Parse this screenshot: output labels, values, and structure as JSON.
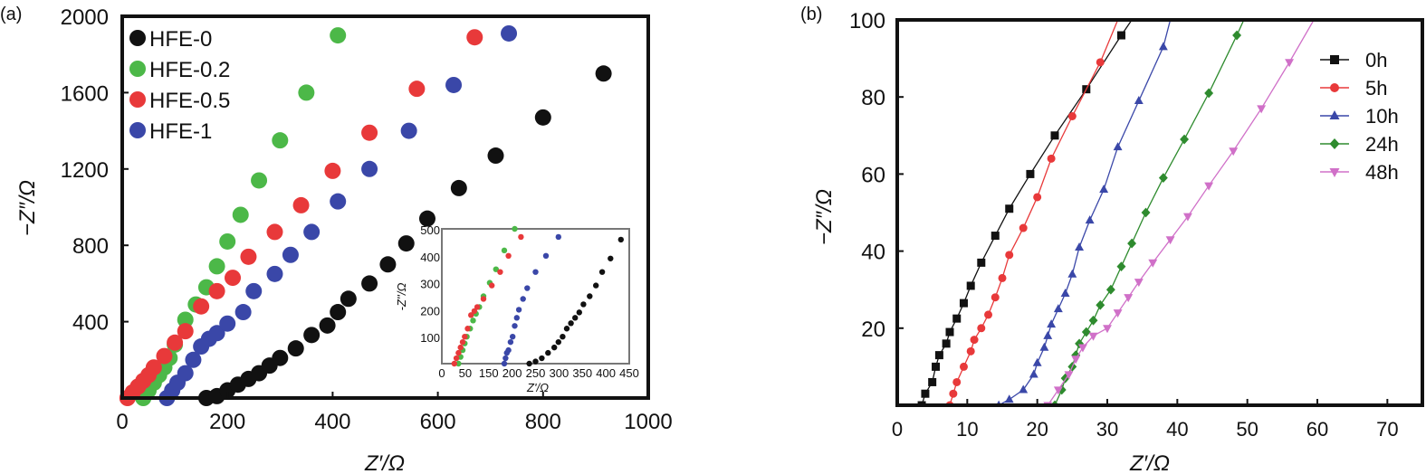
{
  "chart_data": [
    {
      "panel_label": "(a)",
      "type": "scatter",
      "xlabel": "Z′/Ω",
      "ylabel": "−Z″/Ω",
      "xlim": [
        0,
        1000
      ],
      "ylim": [
        0,
        2000
      ],
      "xticks": [
        0,
        200,
        400,
        600,
        800,
        1000
      ],
      "yticks": [
        400,
        800,
        1200,
        1600,
        2000
      ],
      "grid": false,
      "legend_position": "top-left",
      "series": [
        {
          "name": "HFE-0",
          "color": "#111111",
          "marker": "circle",
          "x": [
            160,
            180,
            200,
            220,
            240,
            260,
            280,
            300,
            330,
            360,
            390,
            410,
            430,
            470,
            505,
            540,
            580,
            640,
            710,
            800,
            915
          ],
          "y": [
            0,
            10,
            40,
            70,
            100,
            130,
            170,
            210,
            260,
            330,
            380,
            450,
            520,
            600,
            700,
            810,
            940,
            1100,
            1270,
            1470,
            1700
          ]
        },
        {
          "name": "HFE-0.2",
          "color": "#4cb848",
          "marker": "circle",
          "x": [
            40,
            50,
            60,
            70,
            80,
            90,
            100,
            120,
            140,
            160,
            180,
            200,
            225,
            260,
            300,
            350,
            410
          ],
          "y": [
            0,
            40,
            80,
            120,
            160,
            210,
            280,
            410,
            490,
            580,
            690,
            820,
            960,
            1140,
            1350,
            1600,
            1900
          ]
        },
        {
          "name": "HFE-0.5",
          "color": "#e8393a",
          "marker": "circle",
          "x": [
            10,
            20,
            30,
            40,
            50,
            60,
            80,
            100,
            120,
            150,
            180,
            210,
            240,
            290,
            340,
            400,
            470,
            560,
            670
          ],
          "y": [
            0,
            30,
            60,
            90,
            120,
            160,
            220,
            290,
            350,
            480,
            560,
            630,
            740,
            870,
            1010,
            1190,
            1390,
            1620,
            1890
          ]
        },
        {
          "name": "HFE-1",
          "color": "#3a47a8",
          "marker": "circle",
          "x": [
            85,
            95,
            105,
            120,
            135,
            150,
            165,
            180,
            200,
            230,
            250,
            290,
            320,
            360,
            410,
            470,
            545,
            630,
            735
          ],
          "y": [
            0,
            40,
            80,
            130,
            200,
            270,
            310,
            340,
            390,
            450,
            560,
            650,
            750,
            870,
            1030,
            1200,
            1400,
            1640,
            1910
          ]
        }
      ],
      "inset": {
        "type": "scatter",
        "xlabel": "Z'/Ω",
        "ylabel": "-Z''/Ω",
        "xlim": [
          0,
          450
        ],
        "ylim": [
          0,
          500
        ],
        "xtick_labels": [
          "0",
          "50",
          "150",
          "200",
          "250",
          "300",
          "350",
          "400",
          "450"
        ],
        "yticks": [
          100,
          200,
          300,
          400,
          500
        ],
        "series": [
          {
            "name": "HFE-0",
            "color": "#111111",
            "x": [
              210,
              225,
              240,
              255,
              270,
              280,
              290,
              300,
              310,
              320,
              330,
              340,
              355,
              370,
              385,
              405,
              430
            ],
            "y": [
              0,
              8,
              20,
              40,
              60,
              80,
              100,
              130,
              150,
              170,
              190,
              220,
              250,
              290,
              340,
              390,
              460
            ]
          },
          {
            "name": "HFE-0.2",
            "color": "#4cb848",
            "x": [
              40,
              45,
              50,
              55,
              60,
              68,
              75,
              82,
              90,
              100,
              115,
              130,
              150,
              175
            ],
            "y": [
              0,
              25,
              50,
              75,
              100,
              130,
              160,
              185,
              210,
              250,
              300,
              350,
              420,
              500
            ]
          },
          {
            "name": "HFE-0.5",
            "color": "#e8393a",
            "x": [
              30,
              35,
              40,
              45,
              50,
              55,
              62,
              70,
              78,
              85,
              100,
              120,
              140,
              160,
              190
            ],
            "y": [
              0,
              20,
              40,
              60,
              80,
              100,
              130,
              180,
              195,
              210,
              240,
              290,
              340,
              400,
              470
            ]
          },
          {
            "name": "HFE-1",
            "color": "#3a47a8",
            "x": [
              150,
              153,
              156,
              160,
              165,
              170,
              175,
              180,
              185,
              195,
              205,
              225,
              250,
              280
            ],
            "y": [
              0,
              20,
              40,
              50,
              80,
              100,
              140,
              170,
              200,
              240,
              280,
              340,
              400,
              470
            ]
          }
        ]
      }
    },
    {
      "panel_label": "(b)",
      "type": "line",
      "xlabel": "Z′/Ω",
      "ylabel": "−Z″/Ω",
      "xlim": [
        0,
        75
      ],
      "ylim": [
        0,
        100
      ],
      "xticks": [
        0,
        10,
        20,
        30,
        40,
        50,
        60,
        70
      ],
      "yticks": [
        20,
        40,
        60,
        80,
        100
      ],
      "grid": false,
      "legend_position": "top-right",
      "series": [
        {
          "name": "0h",
          "color": "#111111",
          "marker": "square",
          "x": [
            3.5,
            4,
            5,
            5.5,
            6,
            7,
            7.5,
            8.5,
            9.5,
            10.5,
            12,
            14,
            16,
            19,
            22.5,
            27,
            32
          ],
          "y": [
            0,
            3,
            6,
            10,
            13,
            16,
            19,
            22.5,
            26.5,
            31,
            37,
            44,
            51,
            60,
            70,
            82,
            96
          ],
          "line_to": [
            33.5,
            100
          ]
        },
        {
          "name": "5h",
          "color": "#e8393a",
          "marker": "circle",
          "x": [
            7.5,
            8,
            8.5,
            9.5,
            10.5,
            11,
            12,
            13,
            14,
            15,
            16,
            18,
            20,
            22,
            25,
            29
          ],
          "y": [
            0,
            3,
            6,
            10,
            14,
            17,
            20,
            23.5,
            28,
            33,
            39,
            46,
            54,
            64,
            75,
            89
          ],
          "line_to": [
            31.5,
            100
          ]
        },
        {
          "name": "10h",
          "color": "#3a47a8",
          "marker": "triangle-up",
          "x": [
            14.5,
            16,
            18,
            19.5,
            20,
            21,
            21.5,
            22,
            23,
            24,
            25,
            26,
            27.5,
            29.5,
            31.5,
            34.5,
            38
          ],
          "y": [
            0,
            1.5,
            4,
            8,
            11,
            15,
            18,
            21,
            25,
            29,
            34,
            41,
            48,
            56,
            67,
            79,
            93
          ],
          "line_to": [
            39,
            100
          ]
        },
        {
          "name": "24h",
          "color": "#2e8b2e",
          "marker": "diamond",
          "x": [
            22.5,
            23.5,
            24,
            25,
            25.5,
            26,
            27,
            28,
            29,
            30.5,
            32,
            33.5,
            35.5,
            38,
            41,
            44.5,
            48.5
          ],
          "y": [
            0,
            4,
            7,
            10,
            13,
            16,
            19,
            22,
            26,
            30,
            36,
            42,
            50,
            59,
            69,
            81,
            96
          ],
          "line_to": [
            49.5,
            100
          ]
        },
        {
          "name": "48h",
          "color": "#d070c8",
          "marker": "triangle-down",
          "x": [
            21.5,
            23,
            24.5,
            25.5,
            26.5,
            28,
            30,
            31.5,
            33,
            34.5,
            36.5,
            39,
            41.5,
            44.5,
            48,
            52,
            56
          ],
          "y": [
            0,
            4,
            8,
            12,
            15,
            18,
            20,
            24,
            28,
            32,
            37,
            43,
            49,
            57,
            66,
            77,
            89
          ],
          "line_to": [
            59.5,
            100
          ]
        }
      ]
    }
  ]
}
